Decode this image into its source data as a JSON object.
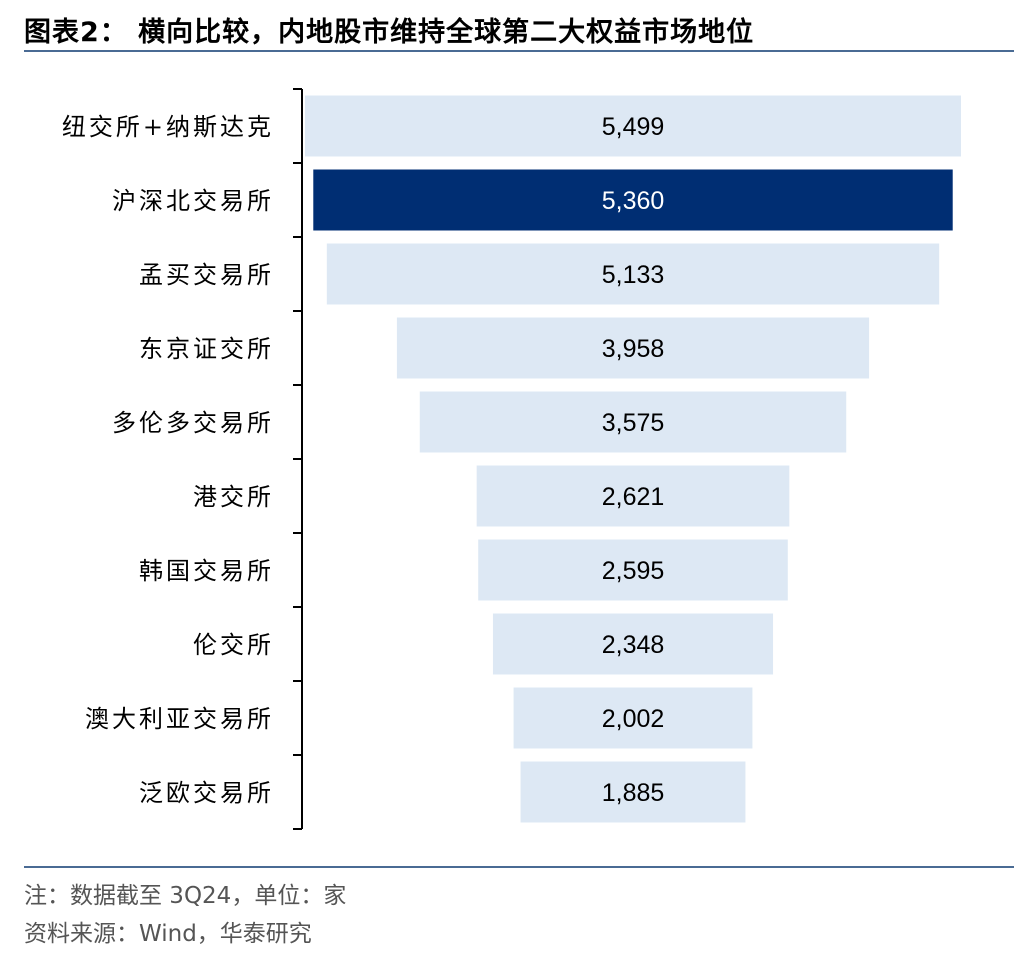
{
  "title": "图表2： 横向比较，内地股市维持全球第二大权益市场地位",
  "chart_data": {
    "type": "bar",
    "orientation": "horizontal-centered",
    "categories": [
      "纽交所+纳斯达克",
      "沪深北交易所",
      "孟买交易所",
      "东京证交所",
      "多伦多交易所",
      "港交所",
      "韩国交易所",
      "伦交所",
      "澳大利亚交易所",
      "泛欧交易所"
    ],
    "values": [
      5499,
      5360,
      5133,
      3958,
      3575,
      2621,
      2595,
      2348,
      2002,
      1885
    ],
    "value_labels": [
      "5,499",
      "5,360",
      "5,133",
      "3,958",
      "3,575",
      "2,621",
      "2,595",
      "2,348",
      "2,002",
      "1,885"
    ],
    "highlight_index": 1,
    "xlim": [
      0,
      5499
    ],
    "grid": false,
    "legend": "none",
    "xlabel": "",
    "ylabel": ""
  },
  "colors": {
    "bar": "#dde8f4",
    "highlight": "#002e73",
    "label": "#000000",
    "highlight_label": "#ffffff",
    "axis": "#000000",
    "rule": "#4a6b94"
  },
  "footer": {
    "note": "注：数据截至 3Q24，单位：家",
    "source": "资料来源：Wind，华泰研究"
  }
}
